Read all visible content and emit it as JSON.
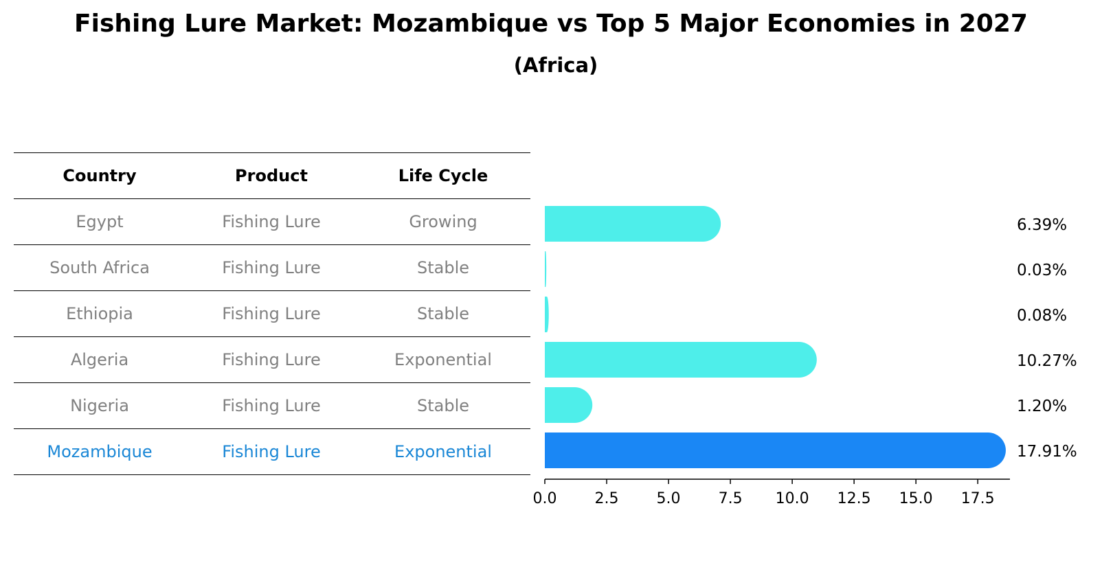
{
  "header": {
    "title": "Fishing Lure Market: Mozambique vs Top 5 Major Economies in 2027",
    "subtitle": "(Africa)"
  },
  "table": {
    "columns": [
      "Country",
      "Product",
      "Life Cycle"
    ],
    "rows": [
      {
        "country": "Egypt",
        "product": "Fishing Lure",
        "life_cycle": "Growing"
      },
      {
        "country": "South Africa",
        "product": "Fishing Lure",
        "life_cycle": "Stable"
      },
      {
        "country": "Ethiopia",
        "product": "Fishing Lure",
        "life_cycle": "Stable"
      },
      {
        "country": "Algeria",
        "product": "Fishing Lure",
        "life_cycle": "Exponential"
      },
      {
        "country": "Nigeria",
        "product": "Fishing Lure",
        "life_cycle": "Stable"
      },
      {
        "country": "Mozambique",
        "product": "Fishing Lure",
        "life_cycle": "Exponential"
      }
    ],
    "highlight_row": 5
  },
  "colors": {
    "bar": "#4eeeea",
    "highlight_bar": "#1a87f5",
    "muted_text": "#808080",
    "highlight_text": "#1a87d6"
  },
  "chart_data": {
    "type": "bar",
    "orientation": "horizontal",
    "categories": [
      "Egypt",
      "South Africa",
      "Ethiopia",
      "Algeria",
      "Nigeria",
      "Mozambique"
    ],
    "values": [
      6.39,
      0.03,
      0.08,
      10.27,
      1.2,
      17.91
    ],
    "value_labels": [
      "6.39%",
      "0.03%",
      "0.08%",
      "10.27%",
      "1.20%",
      "17.91%"
    ],
    "xlim": [
      0,
      18.8
    ],
    "xticks": [
      0,
      2.5,
      5,
      7.5,
      10,
      12.5,
      15,
      17.5
    ],
    "xtick_labels": [
      "0.0",
      "2.5",
      "5.0",
      "7.5",
      "10.0",
      "12.5",
      "15.0",
      "17.5"
    ],
    "highlight_index": 5,
    "title": "Fishing Lure Market: Mozambique vs Top 5 Major Economies in 2027",
    "subtitle": "(Africa)",
    "xlabel": "",
    "ylabel": ""
  }
}
